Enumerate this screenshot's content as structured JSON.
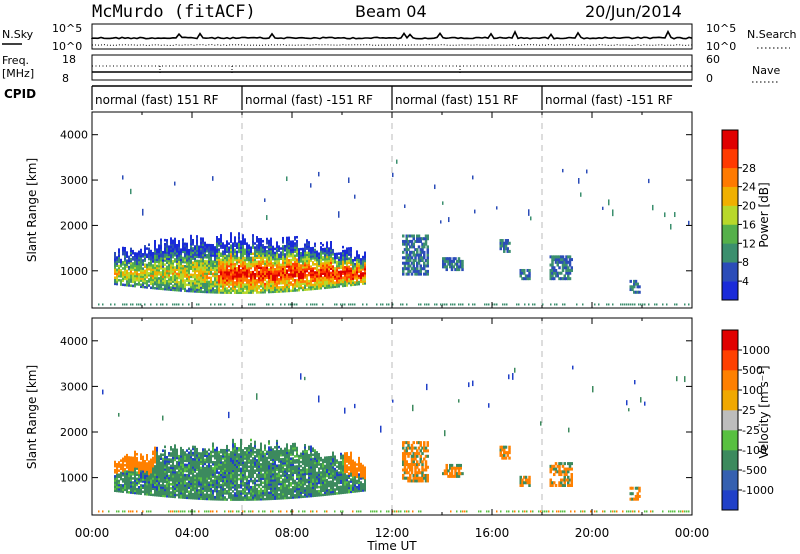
{
  "header": {
    "radar": "McMurdo (fitACF)",
    "beam": "Beam 04",
    "date": "20/Jun/2014"
  },
  "noise_panel": {
    "left_label": "N.Sky",
    "right_label": "N.Search",
    "tick_top": "10^5",
    "tick_bottom": "10^0",
    "right_tick_top": "10^5",
    "right_tick_bottom": "10^0"
  },
  "freq_panel": {
    "left_label_1": "Freq.",
    "left_label_2": "[MHz]",
    "tick_top": "18",
    "tick_bottom": "8",
    "right_label": "Nave",
    "right_tick_top": "60",
    "right_tick_bottom": "0"
  },
  "cpid": {
    "label": "CPID",
    "segments": [
      {
        "start": 0,
        "end": 6,
        "text": "normal (fast) 151 RF"
      },
      {
        "start": 6,
        "end": 12,
        "text": "normal (fast) -151 RF"
      },
      {
        "start": 12,
        "end": 18,
        "text": "normal (fast) 151 RF"
      },
      {
        "start": 18,
        "end": 24,
        "text": "normal (fast) -151 RF"
      }
    ]
  },
  "chart_data": [
    {
      "type": "heatmap",
      "name": "power",
      "ylabel": "Slant Range [km]",
      "ylim": [
        180,
        4500
      ],
      "xlim": [
        0,
        24
      ],
      "yticks": [
        1000,
        2000,
        3000,
        4000
      ],
      "colorbar": {
        "label": "Power [dB]",
        "ticks": [
          "4",
          "8",
          "12",
          "16",
          "20",
          "24",
          "28"
        ],
        "colors": [
          "#1a2bd9",
          "#2b4cb8",
          "#3b8f6e",
          "#55b04a",
          "#b8d82a",
          "#f0b000",
          "#ff7a00",
          "#ff3a00",
          "#e00000"
        ]
      }
    },
    {
      "type": "heatmap",
      "name": "velocity",
      "ylabel": "Slant Range [km]",
      "ylim": [
        180,
        4500
      ],
      "xlim": [
        0,
        24
      ],
      "yticks": [
        1000,
        2000,
        3000,
        4000
      ],
      "colorbar": {
        "label": "Velocity [m s⁻¹]",
        "ticks": [
          "1000",
          "500",
          "100",
          "25",
          "-25",
          "-100",
          "-500",
          "-1000"
        ],
        "colors": [
          "#2040c8",
          "#3560b0",
          "#3c8a5e",
          "#58c040",
          "#bdbdbd",
          "#f0a800",
          "#ff8000",
          "#ff4000",
          "#e00000"
        ]
      }
    }
  ],
  "x_axis": {
    "label": "Time UT",
    "ticks": [
      {
        "value": 0,
        "label": "00:00"
      },
      {
        "value": 4,
        "label": "04:00"
      },
      {
        "value": 8,
        "label": "08:00"
      },
      {
        "value": 12,
        "label": "12:00"
      },
      {
        "value": 16,
        "label": "16:00"
      },
      {
        "value": 20,
        "label": "20:00"
      },
      {
        "value": 24,
        "label": "00:00"
      }
    ]
  }
}
